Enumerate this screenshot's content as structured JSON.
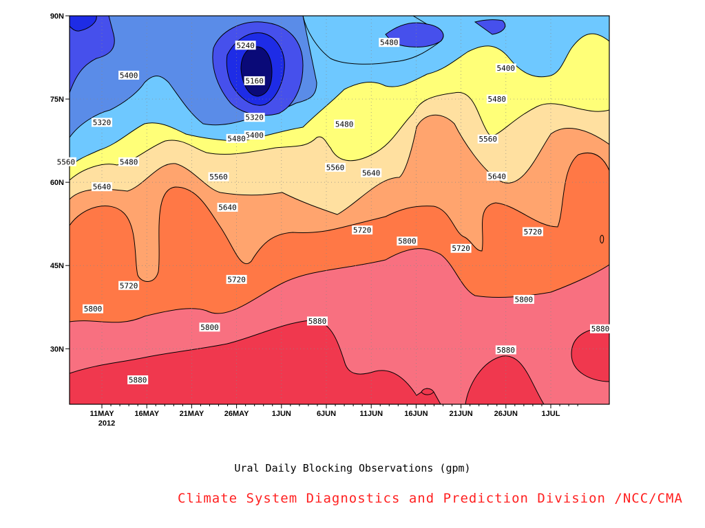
{
  "chart_data": {
    "type": "contour",
    "title": "Ural Daily Blocking Observations (gpm)",
    "x": [
      "11MAY",
      "16MAY",
      "21MAY",
      "26MAY",
      "1JUN",
      "6JUN",
      "11JUN",
      "16JUN",
      "21JUN",
      "26JUN",
      "1JUL"
    ],
    "x_year": "2012",
    "y": [
      "30N",
      "45N",
      "60N",
      "75N",
      "90N"
    ],
    "ylim_deg": [
      20,
      90
    ],
    "grid": true,
    "contour_levels": [
      5160,
      5240,
      5320,
      5400,
      5480,
      5560,
      5640,
      5720,
      5800,
      5880
    ],
    "band_colors": [
      "#0a0a78",
      "#1e2ce6",
      "#4650ec",
      "#5a8ce8",
      "#6ec8ff",
      "#ffff78",
      "#ffe0a0",
      "#ffa46e",
      "#ff7846",
      "#f87080",
      "#f0384e"
    ],
    "contour_labels": [
      {
        "text": "5240",
        "date": "27MAY",
        "lat": 84.7
      },
      {
        "text": "5160",
        "date": "28MAY",
        "lat": 78.3
      },
      {
        "text": "5400",
        "date": "14MAY",
        "lat": 79.3
      },
      {
        "text": "5320",
        "date": "11MAY",
        "lat": 70.8
      },
      {
        "text": "5320",
        "date": "28MAY",
        "lat": 71.7
      },
      {
        "text": "5400",
        "date": "28MAY",
        "lat": 68.5
      },
      {
        "text": "5480",
        "date": "26MAY",
        "lat": 67.9
      },
      {
        "text": "5480",
        "date": "7JUN",
        "lat": 70.5
      },
      {
        "text": "5480",
        "date": "12JUN",
        "lat": 85.2
      },
      {
        "text": "5400",
        "date": "25JUN",
        "lat": 80.6
      },
      {
        "text": "5480",
        "date": "24JUN",
        "lat": 75.0
      },
      {
        "text": "5560",
        "date": "7MAY",
        "lat": 63.7
      },
      {
        "text": "5480",
        "date": "14MAY",
        "lat": 63.7
      },
      {
        "text": "5560",
        "date": "24MAY",
        "lat": 61.0
      },
      {
        "text": "5560",
        "date": "6JUN",
        "lat": 62.7
      },
      {
        "text": "5640",
        "date": "10JUN",
        "lat": 61.7
      },
      {
        "text": "5560",
        "date": "23JUN",
        "lat": 67.8
      },
      {
        "text": "5640",
        "date": "24JUN",
        "lat": 61.1
      },
      {
        "text": "5640",
        "date": "11MAY",
        "lat": 59.2
      },
      {
        "text": "5640",
        "date": "25MAY",
        "lat": 55.5
      },
      {
        "text": "5720",
        "date": "9JUN",
        "lat": 51.4
      },
      {
        "text": "5800",
        "date": "14JUN",
        "lat": 49.4
      },
      {
        "text": "5720",
        "date": "20JUN",
        "lat": 48.1
      },
      {
        "text": "5720",
        "date": "28JUN",
        "lat": 51.1
      },
      {
        "text": "5720",
        "date": "14MAY",
        "lat": 41.4
      },
      {
        "text": "5720",
        "date": "26MAY",
        "lat": 42.5
      },
      {
        "text": "5800",
        "date": "10MAY",
        "lat": 37.2
      },
      {
        "text": "5800",
        "date": "23MAY",
        "lat": 33.9
      },
      {
        "text": "5880",
        "date": "4JUN",
        "lat": 35.0
      },
      {
        "text": "5800",
        "date": "27JUN",
        "lat": 38.9
      },
      {
        "text": "5880",
        "date": "6JUL",
        "lat": 33.6
      },
      {
        "text": "5880",
        "date": "25JUN",
        "lat": 29.8
      },
      {
        "text": "5880",
        "date": "15MAY",
        "lat": 24.4
      }
    ]
  },
  "caption": "Ural Daily Blocking Observations (gpm)",
  "credit": "Climate System Diagnostics and Prediction Division /NCC/CMA"
}
